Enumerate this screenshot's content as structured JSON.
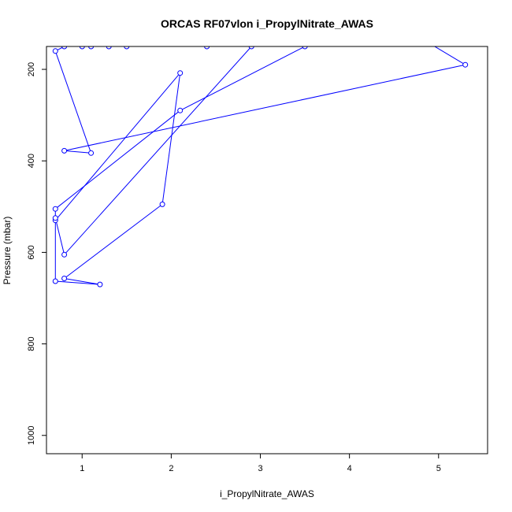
{
  "chart_data": {
    "type": "line",
    "title": "ORCAS RF07vlon i_PropylNitrate_AWAS",
    "xlabel": "i_PropylNitrate_AWAS",
    "ylabel": "Pressure (mbar)",
    "xlim": [
      0.6,
      5.55
    ],
    "ylim": [
      1040,
      150
    ],
    "y_reversed": true,
    "x_ticks": [
      1,
      2,
      3,
      4,
      5
    ],
    "y_ticks": [
      200,
      400,
      600,
      800,
      1000
    ],
    "grid": false,
    "legend": "none",
    "series_color": "#0000ff",
    "series": [
      {
        "points": [
          [
            1.0,
            150
          ],
          [
            1.1,
            150
          ],
          [
            1.3,
            150
          ],
          [
            1.5,
            150
          ],
          [
            0.8,
            150
          ],
          [
            0.7,
            160
          ],
          [
            1.1,
            383
          ],
          [
            0.8,
            378
          ],
          [
            5.3,
            190
          ],
          [
            4.7,
            120
          ],
          [
            3.5,
            150
          ],
          [
            2.1,
            290
          ],
          [
            0.7,
            505
          ],
          [
            0.7,
            530
          ],
          [
            2.1,
            208
          ],
          [
            1.9,
            495
          ],
          [
            0.8,
            657
          ],
          [
            1.2,
            670
          ],
          [
            0.7,
            663
          ],
          [
            0.7,
            525
          ],
          [
            0.8,
            605
          ],
          [
            2.9,
            150
          ],
          [
            2.4,
            150
          ]
        ]
      }
    ]
  }
}
